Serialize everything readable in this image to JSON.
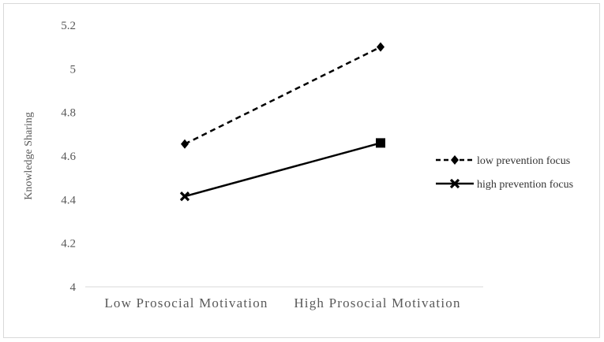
{
  "chart_data": {
    "type": "line",
    "title": "",
    "xlabel": "",
    "ylabel": "Knowledge Sharing",
    "categories": [
      "Low Prosocial Motivation",
      "High Prosocial Motivation"
    ],
    "ylim": [
      4,
      5.2
    ],
    "yticks": [
      "4",
      "4.2",
      "4.4",
      "4.6",
      "4.8",
      "5",
      "5.2"
    ],
    "grid": false,
    "legend_position": "right",
    "series": [
      {
        "name": "low prevention focus",
        "values": [
          4.655,
          5.1
        ],
        "line_style": "dashed",
        "marker_start": "diamond",
        "marker_end": "diamond",
        "color": "#000000"
      },
      {
        "name": "high prevention focus",
        "values": [
          4.415,
          4.66
        ],
        "line_style": "solid",
        "marker_start": "x",
        "marker_end": "square",
        "color": "#000000"
      }
    ]
  }
}
